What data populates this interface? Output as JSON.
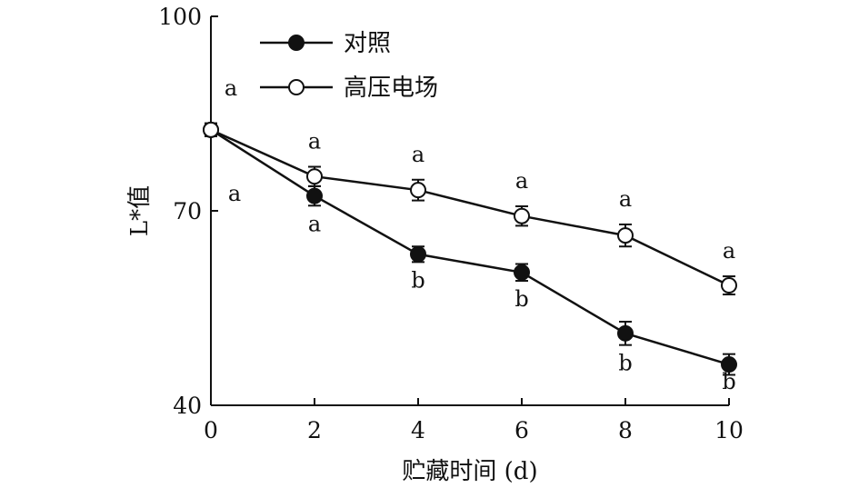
{
  "chart_data": {
    "type": "line",
    "xlabel": "贮藏时间 (d)",
    "ylabel": "L*值",
    "x": [
      0,
      2,
      4,
      6,
      8,
      10
    ],
    "xlim": [
      0,
      10
    ],
    "ylim": [
      40,
      100
    ],
    "x_ticks": [
      "0",
      "2",
      "4",
      "6",
      "8",
      "10"
    ],
    "y_ticks": [
      "40",
      "70",
      "100"
    ],
    "grid": false,
    "legend_position": "top-left",
    "series": [
      {
        "name": "对照",
        "marker": "filled-circle",
        "values": [
          82.5,
          72.3,
          63.3,
          60.5,
          51.1,
          46.3
        ],
        "errors": [
          1.0,
          1.5,
          1.2,
          1.3,
          1.8,
          1.6
        ],
        "significance": [
          "a",
          "a",
          "b",
          "b",
          "b",
          "b"
        ]
      },
      {
        "name": "高压电场",
        "marker": "open-circle",
        "values": [
          82.5,
          75.3,
          73.2,
          69.2,
          66.2,
          58.5
        ],
        "errors": [
          1.0,
          1.5,
          1.6,
          1.5,
          1.7,
          1.4
        ],
        "significance": [
          "a",
          "a",
          "a",
          "a",
          "a",
          "a"
        ]
      }
    ]
  }
}
